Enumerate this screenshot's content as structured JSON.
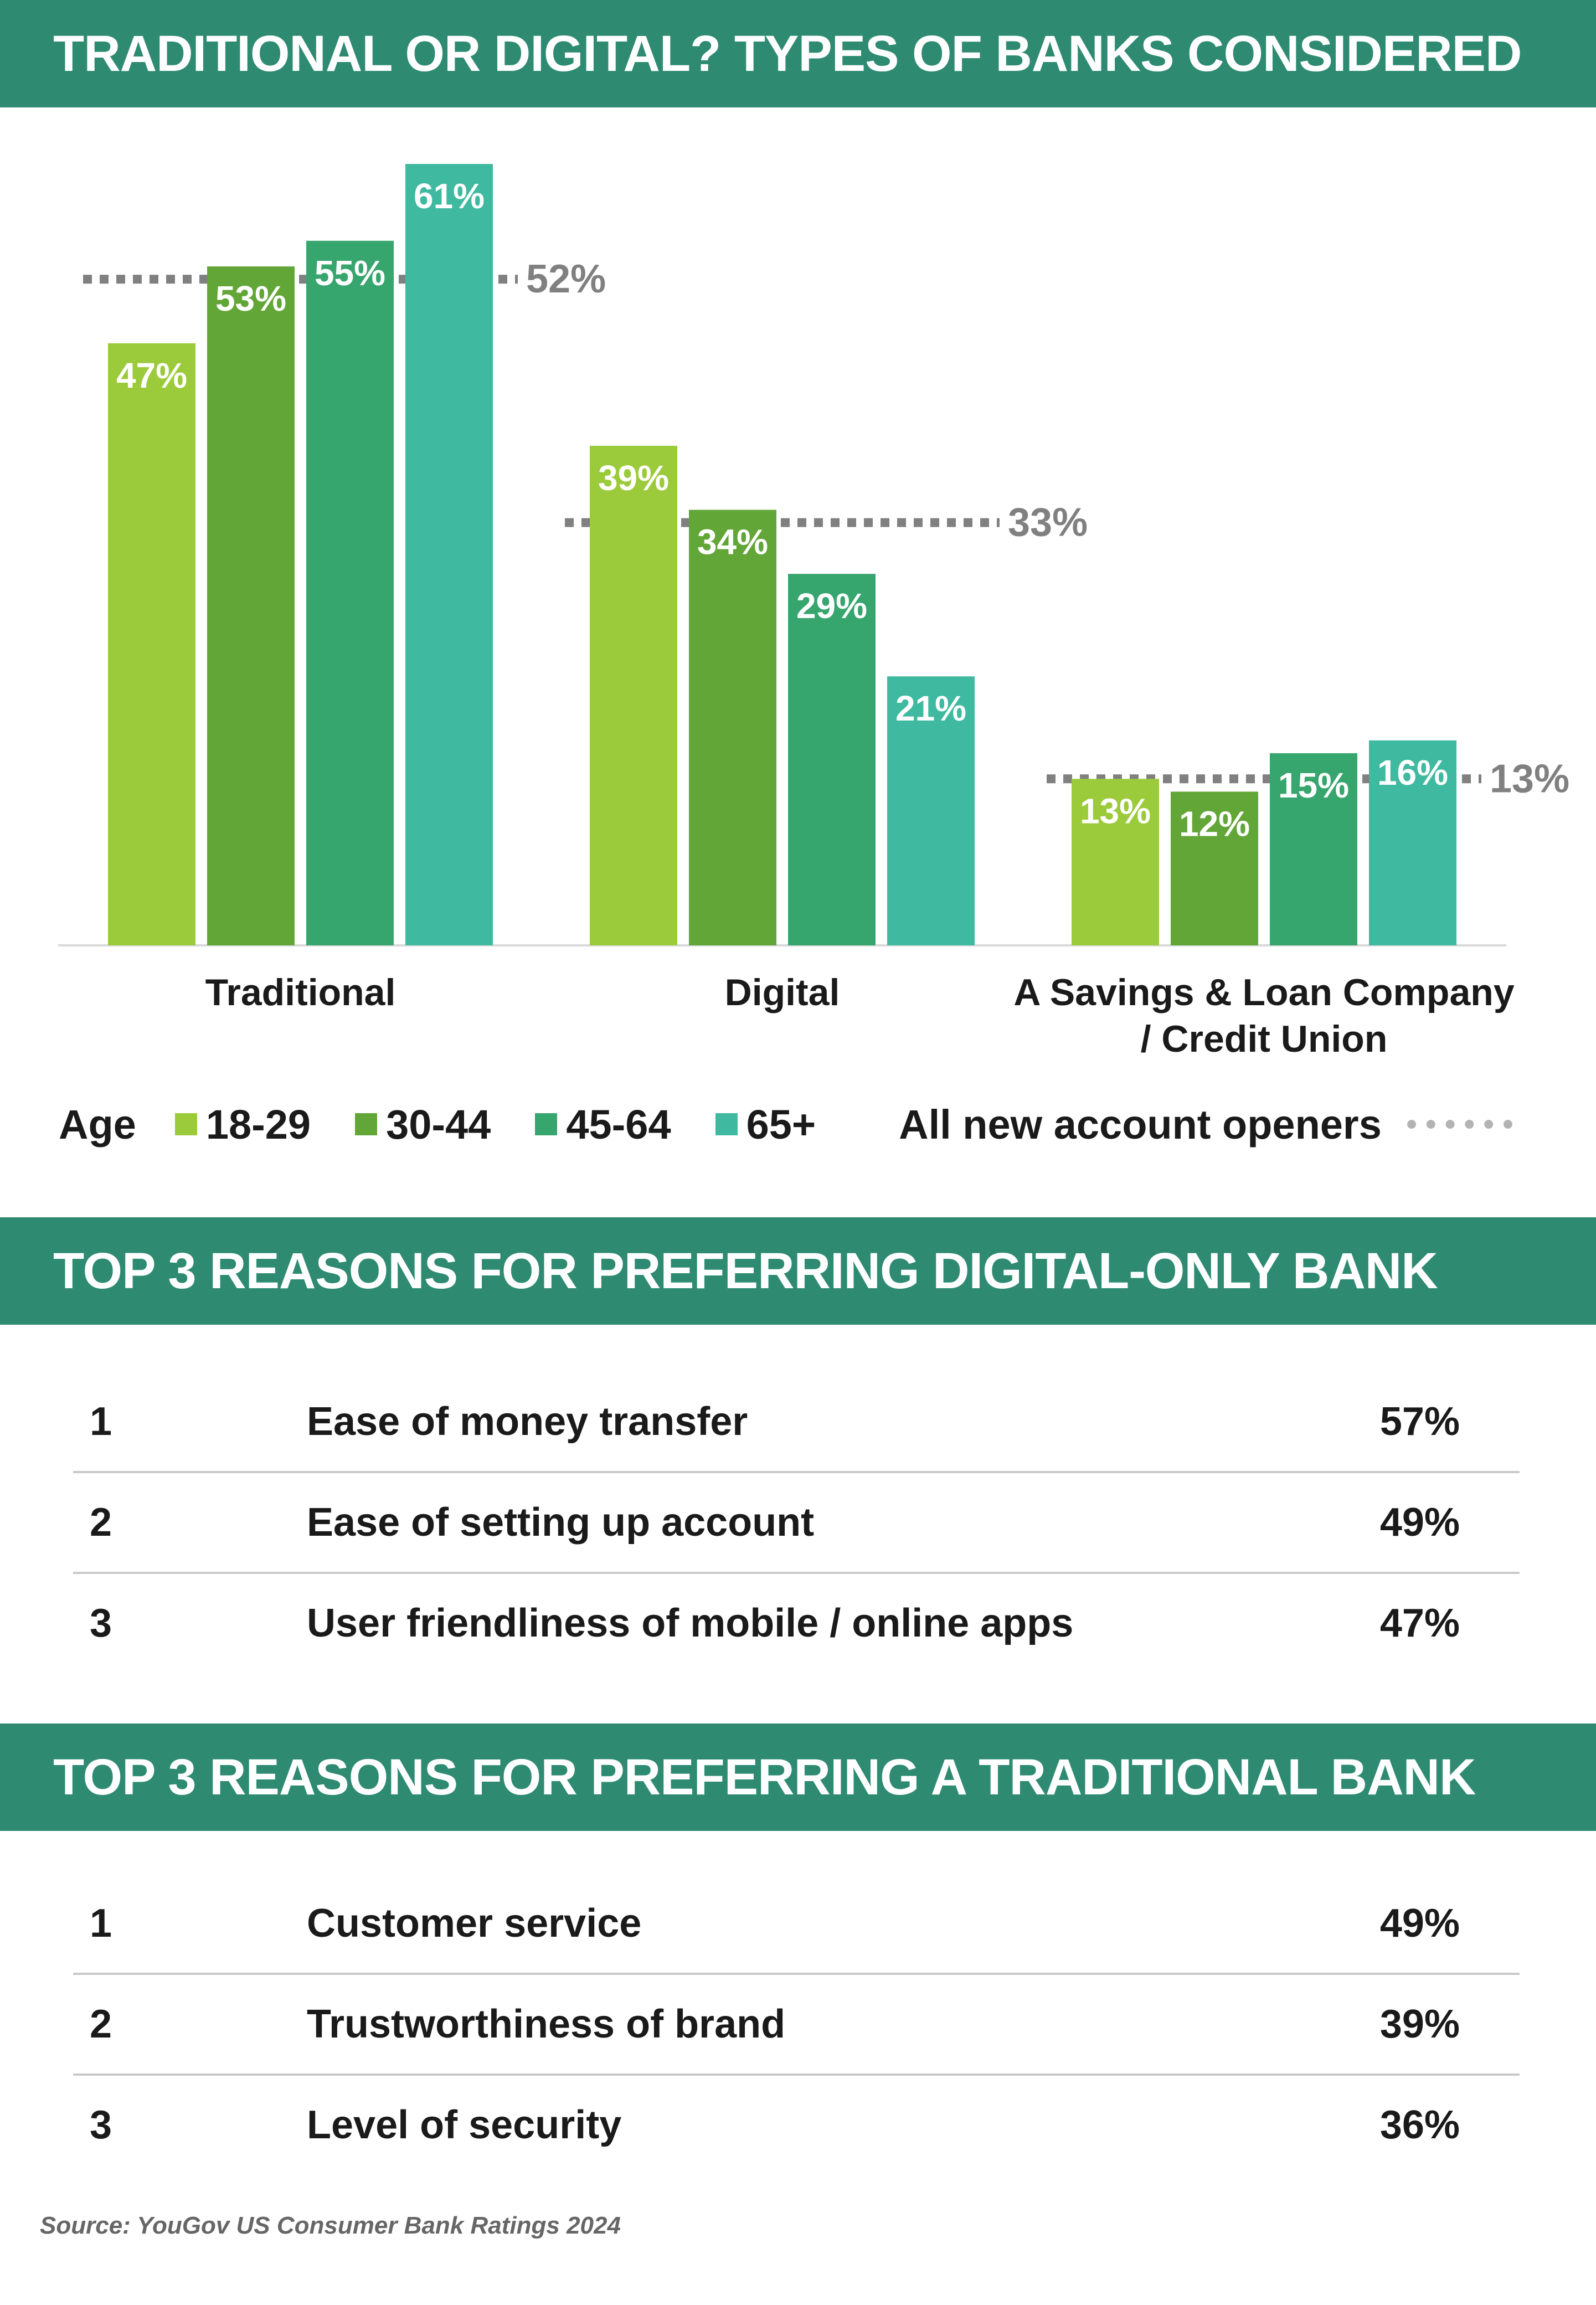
{
  "chart_data": {
    "type": "bar",
    "title": "TRADITIONAL OR DIGITAL? TYPES OF BANKS CONSIDERED",
    "categories": [
      "Traditional",
      "Digital",
      "A Savings & Loan Company / Credit Union"
    ],
    "legend_title": "Age",
    "series": [
      {
        "name": "18-29",
        "color": "#9bcb3b",
        "values": [
          47,
          39,
          13
        ]
      },
      {
        "name": "30-44",
        "color": "#63a638",
        "values": [
          53,
          34,
          12
        ]
      },
      {
        "name": "45-64",
        "color": "#37a56e",
        "values": [
          55,
          29,
          15
        ]
      },
      {
        "name": "65+",
        "color": "#3fbaa0",
        "values": [
          61,
          21,
          16
        ]
      }
    ],
    "reference": {
      "name": "All new account openers",
      "values": [
        52,
        33,
        13
      ],
      "color": "#808080"
    },
    "ylim": [
      0,
      61
    ],
    "unit": "%"
  },
  "digital_section": {
    "title": "TOP 3 REASONS FOR PREFERRING DIGITAL-ONLY BANK",
    "rows": [
      {
        "rank": "1",
        "reason": "Ease of money transfer",
        "pct": "57%"
      },
      {
        "rank": "2",
        "reason": "Ease of setting up account",
        "pct": "49%"
      },
      {
        "rank": "3",
        "reason": "User friendliness of mobile / online apps",
        "pct": "47%"
      }
    ]
  },
  "traditional_section": {
    "title": "TOP 3 REASONS FOR PREFERRING A TRADITIONAL BANK",
    "rows": [
      {
        "rank": "1",
        "reason": "Customer service",
        "pct": "49%"
      },
      {
        "rank": "2",
        "reason": "Trustworthiness of brand",
        "pct": "39%"
      },
      {
        "rank": "3",
        "reason": "Level of security",
        "pct": "36%"
      }
    ]
  },
  "source": "Source: YouGov US Consumer Bank Ratings 2024"
}
